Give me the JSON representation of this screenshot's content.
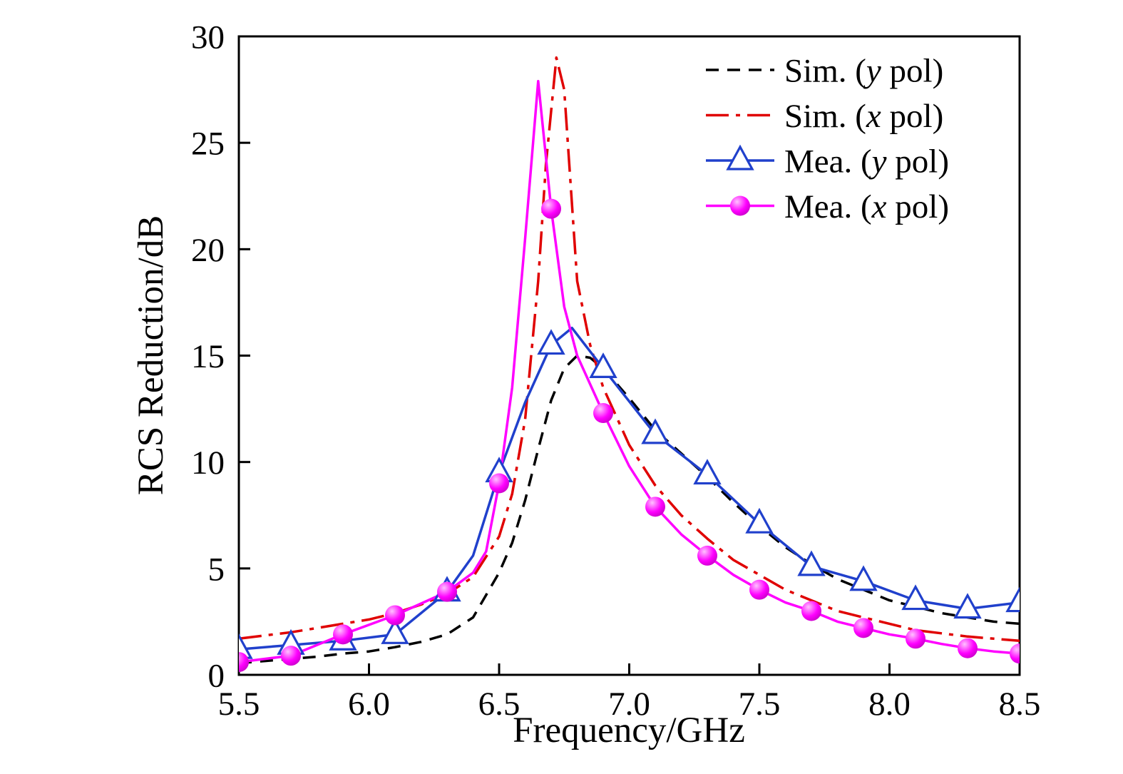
{
  "chart_data": {
    "type": "line",
    "title": "",
    "xlabel": "Frequency/GHz",
    "ylabel": "RCS Reduction/dB",
    "xlim": [
      5.5,
      8.5
    ],
    "ylim": [
      0,
      30
    ],
    "xticks": [
      5.5,
      6.0,
      6.5,
      7.0,
      7.5,
      8.0,
      8.5
    ],
    "xtick_labels": [
      "5.5",
      "6.0",
      "6.5",
      "7.0",
      "7.5",
      "8.0",
      "8.5"
    ],
    "yticks": [
      0,
      5,
      10,
      15,
      20,
      25,
      30
    ],
    "ytick_labels": [
      "0",
      "5",
      "10",
      "15",
      "20",
      "25",
      "30"
    ],
    "grid": false,
    "legend_position": "top-right-inside",
    "axis_color": "#000000",
    "series": [
      {
        "name": "Sim. (y pol)",
        "label_parts": {
          "prefix": "Sim. (",
          "variable": "y",
          "suffix": " pol)"
        },
        "color": "#000000",
        "line_style": "dashed",
        "marker": "none",
        "x": [
          5.5,
          5.6,
          5.7,
          5.8,
          5.9,
          6.0,
          6.1,
          6.2,
          6.3,
          6.4,
          6.5,
          6.55,
          6.6,
          6.65,
          6.7,
          6.75,
          6.8,
          6.85,
          6.9,
          7.0,
          7.1,
          7.2,
          7.3,
          7.4,
          7.5,
          7.6,
          7.7,
          7.8,
          7.9,
          8.0,
          8.1,
          8.2,
          8.3,
          8.4,
          8.5
        ],
        "y": [
          0.55,
          0.65,
          0.75,
          0.85,
          1.0,
          1.1,
          1.3,
          1.55,
          1.9,
          2.7,
          4.8,
          6.2,
          8.2,
          10.6,
          12.9,
          14.4,
          15.0,
          14.9,
          14.4,
          13.0,
          11.5,
          10.4,
          9.3,
          8.1,
          7.0,
          6.0,
          5.2,
          4.5,
          4.0,
          3.5,
          3.2,
          2.9,
          2.7,
          2.5,
          2.4
        ]
      },
      {
        "name": "Sim. (x pol)",
        "label_parts": {
          "prefix": "Sim. (",
          "variable": "x",
          "suffix": " pol)"
        },
        "color": "#e00000",
        "line_style": "dashdot",
        "marker": "none",
        "x": [
          5.5,
          5.6,
          5.7,
          5.8,
          5.9,
          6.0,
          6.1,
          6.2,
          6.3,
          6.4,
          6.5,
          6.55,
          6.6,
          6.65,
          6.68,
          6.72,
          6.75,
          6.8,
          6.85,
          6.9,
          7.0,
          7.1,
          7.2,
          7.3,
          7.4,
          7.5,
          7.6,
          7.7,
          7.8,
          7.9,
          8.0,
          8.1,
          8.2,
          8.3,
          8.4,
          8.5
        ],
        "y": [
          1.7,
          1.85,
          2.0,
          2.2,
          2.4,
          2.6,
          2.9,
          3.3,
          3.8,
          4.6,
          6.5,
          8.5,
          12.0,
          18.5,
          24.0,
          29.0,
          27.5,
          18.5,
          15.5,
          13.5,
          10.8,
          8.9,
          7.5,
          6.4,
          5.4,
          4.7,
          4.0,
          3.5,
          3.0,
          2.7,
          2.4,
          2.1,
          1.95,
          1.8,
          1.7,
          1.6
        ]
      },
      {
        "name": "Mea. (y pol)",
        "label_parts": {
          "prefix": "Mea. (",
          "variable": "y",
          "suffix": " pol)"
        },
        "color": "#2040cc",
        "line_style": "solid",
        "marker": "triangle-open",
        "marker_fill": "#ffffff",
        "x": [
          5.5,
          5.7,
          5.9,
          6.1,
          6.3,
          6.4,
          6.5,
          6.6,
          6.7,
          6.78,
          6.9,
          7.1,
          7.3,
          7.5,
          7.7,
          7.9,
          8.1,
          8.3,
          8.5
        ],
        "y": [
          1.2,
          1.4,
          1.6,
          1.9,
          3.9,
          5.6,
          9.5,
          12.8,
          15.5,
          16.3,
          14.4,
          11.3,
          9.4,
          7.1,
          5.1,
          4.4,
          3.5,
          3.1,
          3.4
        ],
        "marker_x": [
          5.5,
          5.7,
          5.9,
          6.1,
          6.3,
          6.5,
          6.7,
          6.9,
          7.1,
          7.3,
          7.5,
          7.7,
          7.9,
          8.1,
          8.3,
          8.5
        ],
        "marker_y": [
          1.2,
          1.4,
          1.6,
          1.9,
          3.9,
          9.5,
          15.5,
          14.4,
          11.3,
          9.4,
          7.1,
          5.1,
          4.4,
          3.5,
          3.1,
          3.4
        ]
      },
      {
        "name": "Mea. (x pol)",
        "label_parts": {
          "prefix": "Mea. (",
          "variable": "x",
          "suffix": " pol)"
        },
        "color": "#ff00ff",
        "line_style": "solid",
        "marker": "ball",
        "marker_gradient": [
          "#ffc2ff",
          "#ff00ff",
          "#b800b8"
        ],
        "x": [
          5.5,
          5.7,
          5.9,
          6.1,
          6.3,
          6.4,
          6.45,
          6.5,
          6.55,
          6.6,
          6.65,
          6.7,
          6.75,
          6.8,
          6.9,
          7.0,
          7.1,
          7.2,
          7.3,
          7.4,
          7.5,
          7.6,
          7.7,
          7.8,
          7.9,
          8.0,
          8.1,
          8.2,
          8.3,
          8.4,
          8.5
        ],
        "y": [
          0.6,
          0.9,
          1.9,
          2.8,
          3.9,
          4.8,
          5.8,
          9.0,
          13.5,
          20.5,
          27.9,
          21.9,
          17.3,
          15.0,
          12.3,
          9.8,
          7.9,
          6.6,
          5.6,
          4.7,
          4.0,
          3.4,
          3.0,
          2.5,
          2.2,
          1.9,
          1.7,
          1.45,
          1.25,
          1.1,
          1.0
        ],
        "marker_x": [
          5.5,
          5.7,
          5.9,
          6.1,
          6.3,
          6.5,
          6.7,
          6.9,
          7.1,
          7.3,
          7.5,
          7.7,
          7.9,
          8.1,
          8.3,
          8.5
        ],
        "marker_y": [
          0.6,
          0.9,
          1.9,
          2.8,
          3.9,
          9.0,
          21.9,
          12.3,
          7.9,
          5.6,
          4.0,
          3.0,
          2.2,
          1.7,
          1.25,
          1.0
        ]
      }
    ]
  }
}
